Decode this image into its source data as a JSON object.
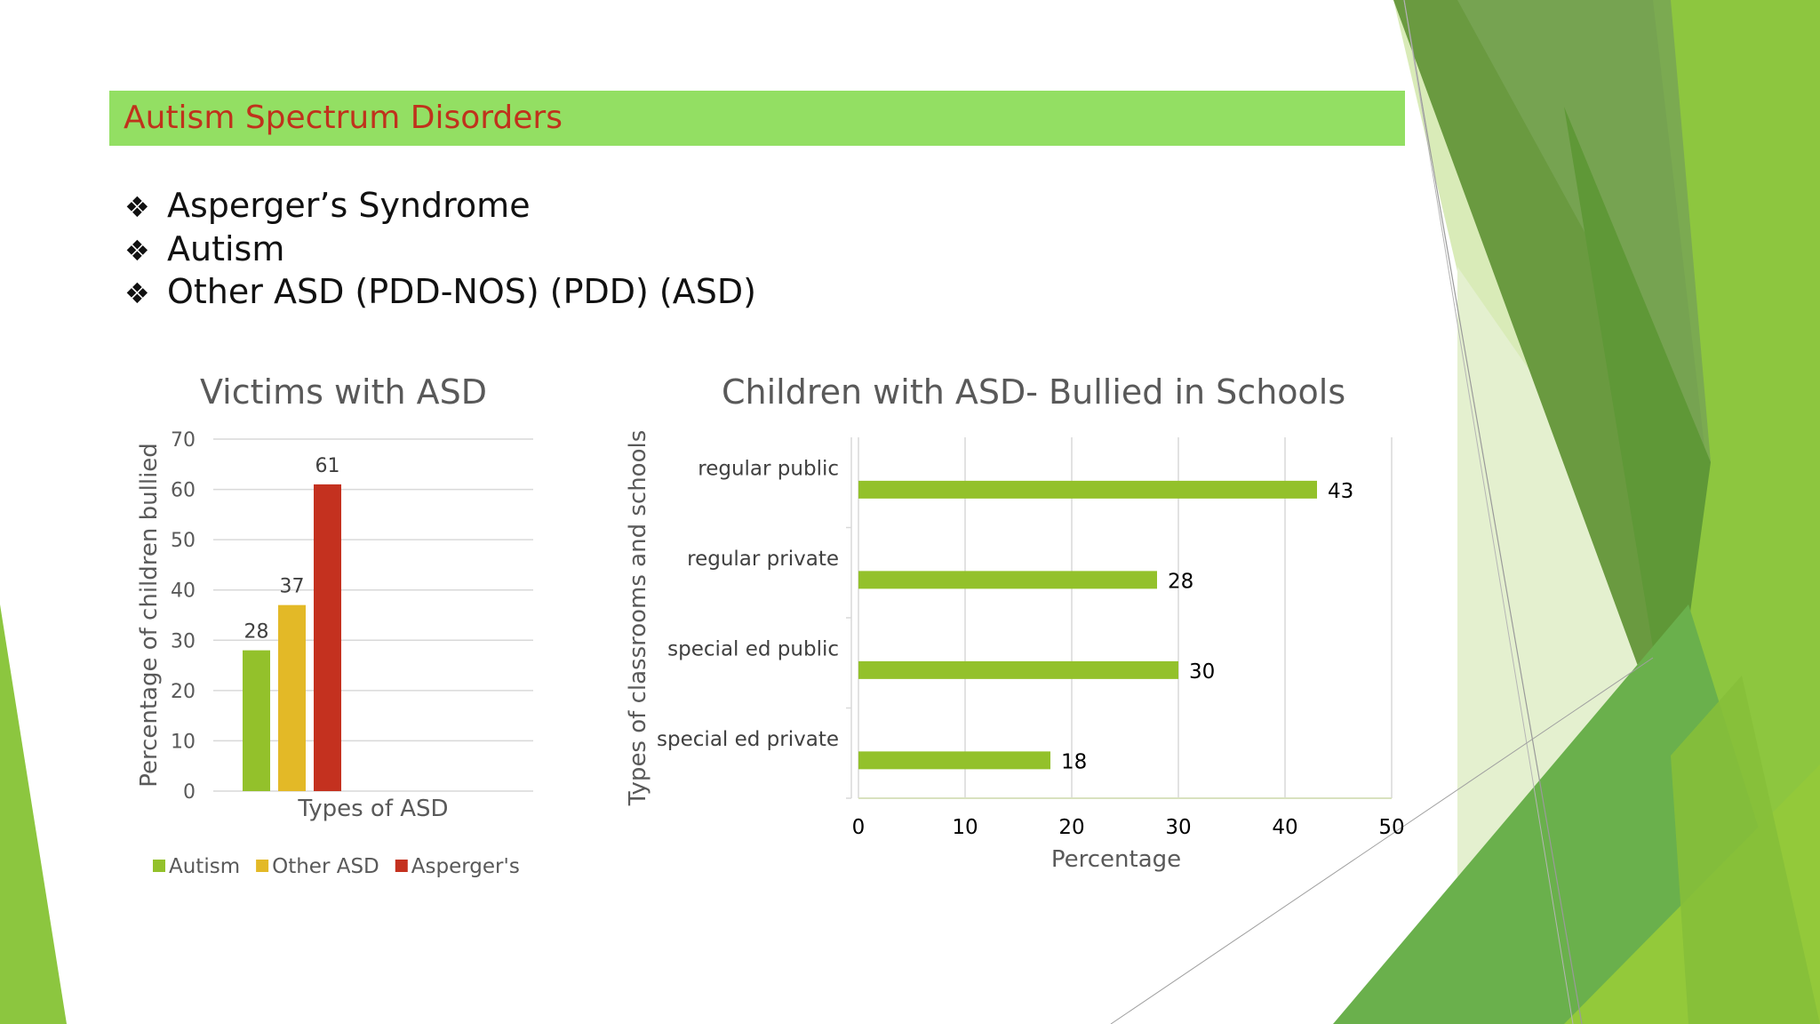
{
  "slide": {
    "title": "Autism Spectrum Disorders",
    "bullets": [
      "Asperger’s Syndrome",
      "Autism",
      "Other ASD  (PDD-NOS) (PDD) (ASD)"
    ],
    "bullet_icon": "four-diamond-icon"
  },
  "colors": {
    "title_bar": "#93df63",
    "title_text": "#c0321c",
    "bar_green": "#93c12b",
    "bar_yellow": "#e3b927",
    "bar_red": "#c4311f"
  },
  "chart_data": [
    {
      "type": "bar",
      "title": "Victims with ASD",
      "xlabel": "Types of ASD",
      "ylabel": "Percentage of children bullied",
      "ylim": [
        0,
        70
      ],
      "yticks": [
        0,
        10,
        20,
        30,
        40,
        50,
        60,
        70
      ],
      "grid": true,
      "legend": "bottom",
      "series": [
        {
          "name": "Autism",
          "values": [
            28
          ],
          "color": "#93c12b"
        },
        {
          "name": "Other ASD",
          "values": [
            37
          ],
          "color": "#e3b927"
        },
        {
          "name": "Asperger's",
          "values": [
            61
          ],
          "color": "#c4311f"
        }
      ]
    },
    {
      "type": "bar",
      "orientation": "horizontal",
      "title": "Children with ASD- Bullied in Schools",
      "xlabel": "Percentage",
      "ylabel": "Types of classrooms and schools",
      "xlim": [
        0,
        50
      ],
      "xticks": [
        0,
        10,
        20,
        30,
        40,
        50
      ],
      "grid": true,
      "categories": [
        "regular public",
        "regular private",
        "special ed public",
        "special ed private"
      ],
      "values": [
        43,
        28,
        30,
        18
      ],
      "color": "#93c12b"
    }
  ]
}
